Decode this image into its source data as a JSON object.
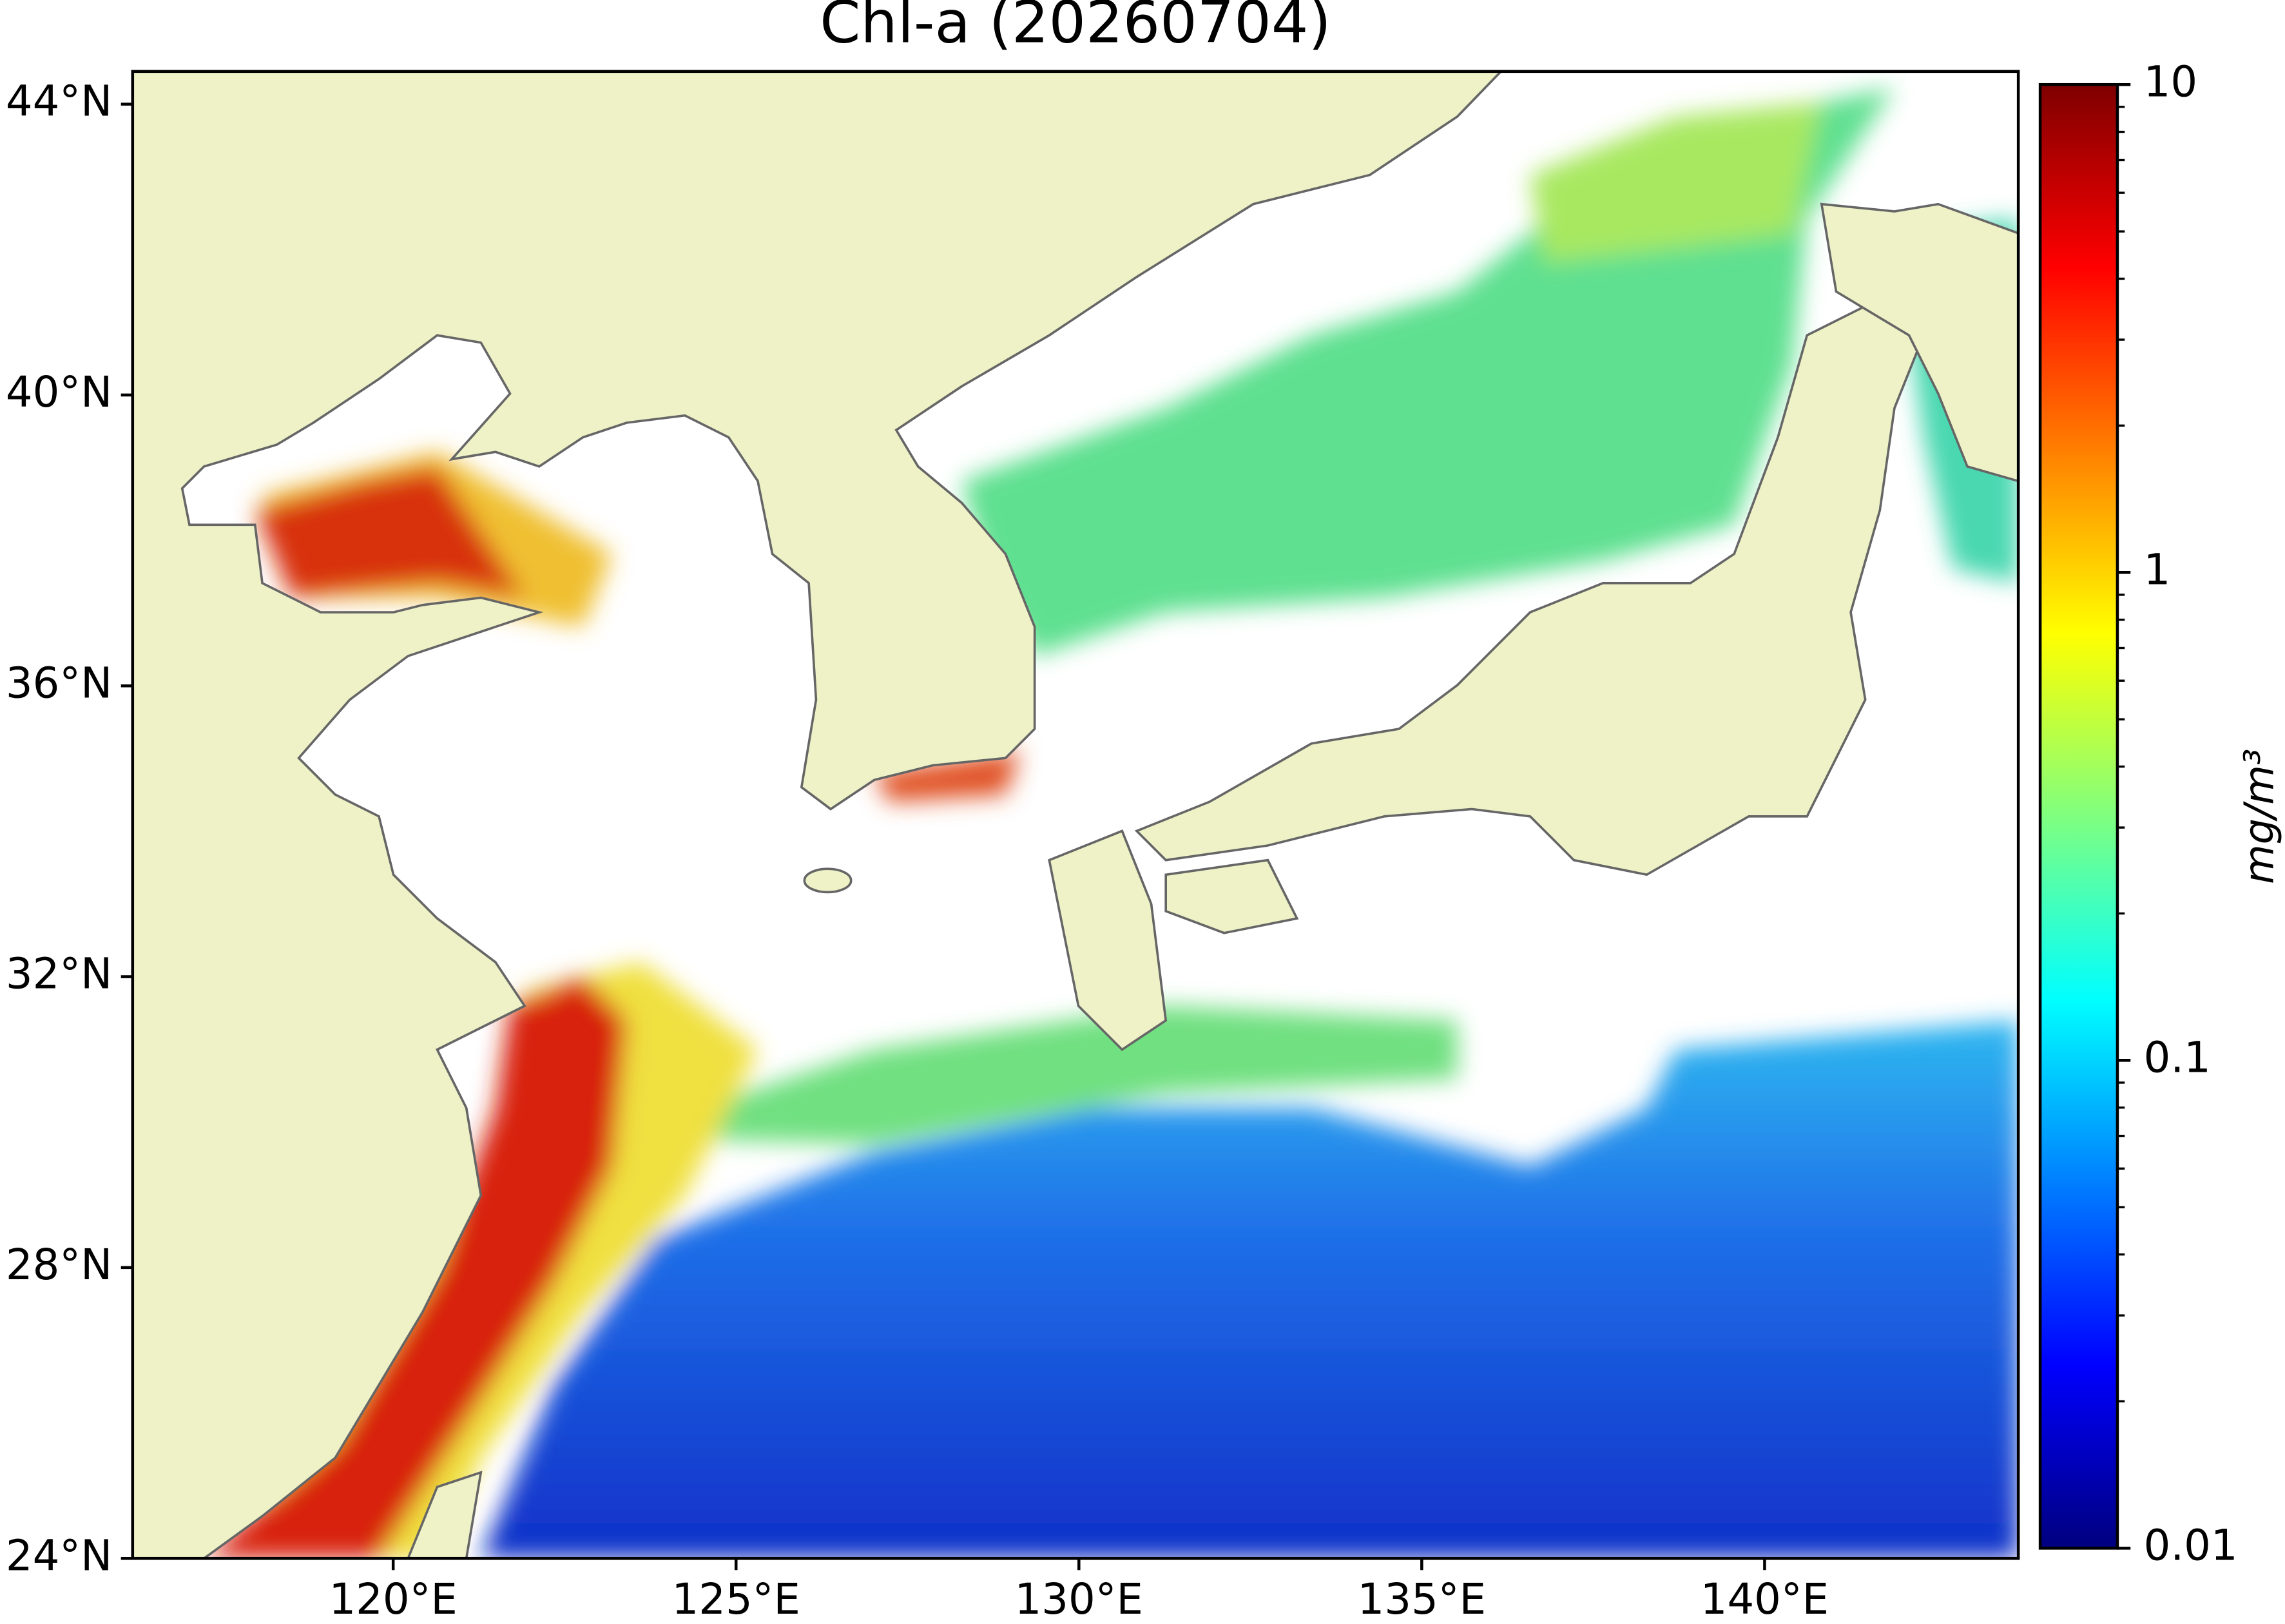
{
  "chart_data": {
    "type": "map",
    "title": "Chl-a (20260704)",
    "xlim": [
      116.2,
      143.7
    ],
    "ylim": [
      24,
      44.45
    ],
    "xticks": [
      {
        "value": 120,
        "label": "120°E"
      },
      {
        "value": 125,
        "label": "125°E"
      },
      {
        "value": 130,
        "label": "130°E"
      },
      {
        "value": 135,
        "label": "135°E"
      },
      {
        "value": 140,
        "label": "140°E"
      }
    ],
    "yticks": [
      {
        "value": 24,
        "label": "24°N"
      },
      {
        "value": 28,
        "label": "28°N"
      },
      {
        "value": 32,
        "label": "32°N"
      },
      {
        "value": 36,
        "label": "36°N"
      },
      {
        "value": 40,
        "label": "40°N"
      },
      {
        "value": 44,
        "label": "44°N"
      }
    ],
    "colorbar": {
      "label": "mg/m³",
      "scale": "log",
      "colormap": "jet",
      "lim": [
        0.01,
        10
      ],
      "ticks": [
        0.01,
        0.1,
        1,
        10
      ]
    }
  }
}
